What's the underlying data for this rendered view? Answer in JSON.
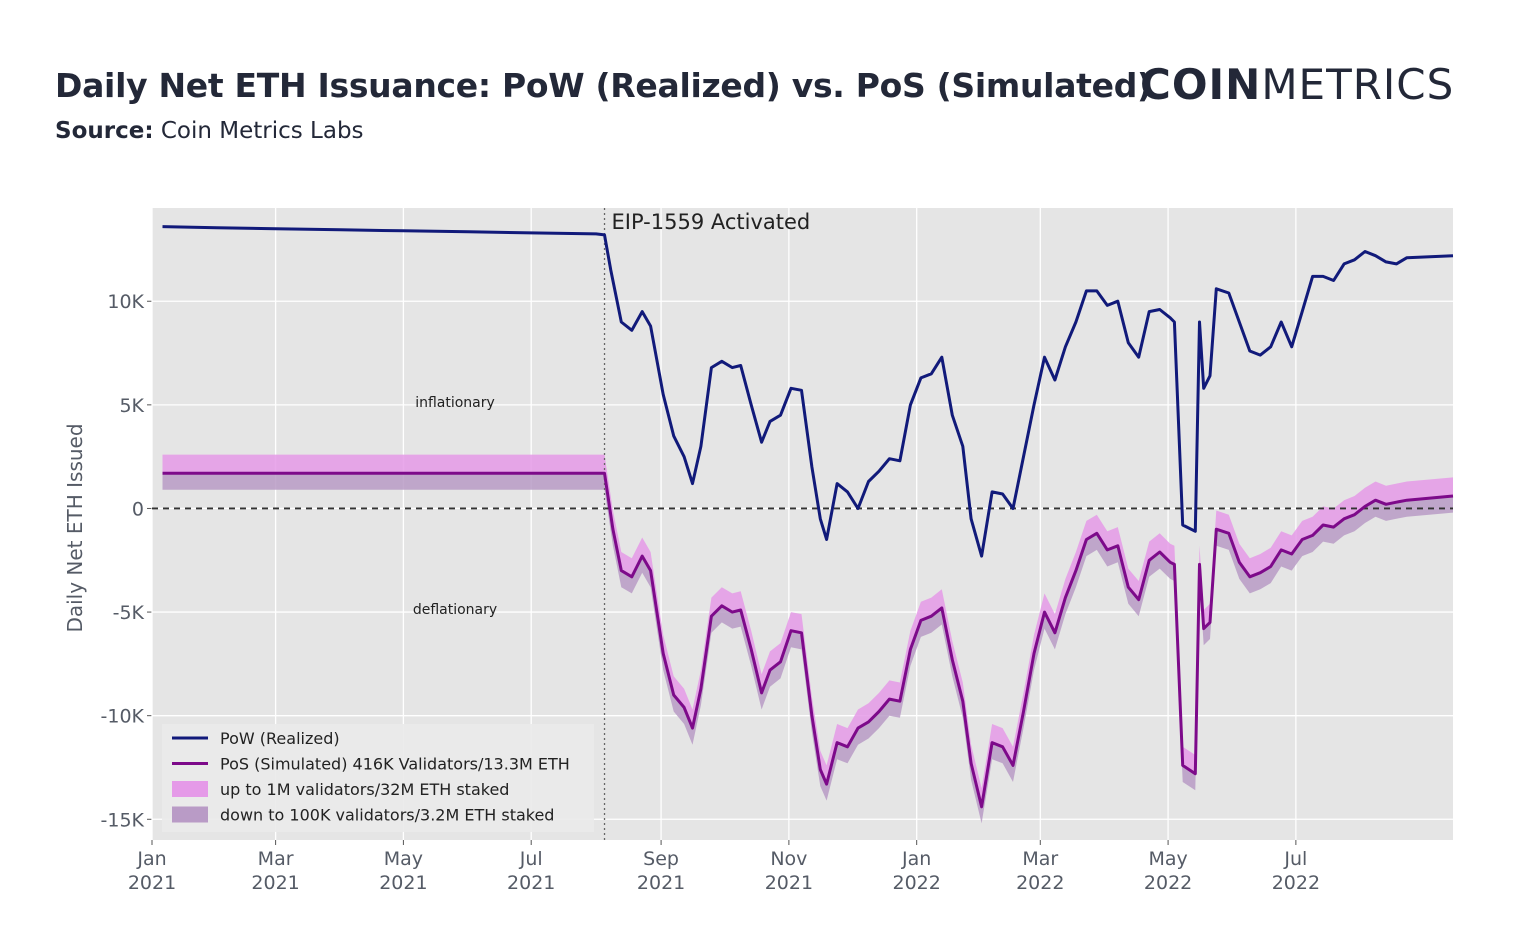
{
  "header": {
    "title": "Daily Net ETH Issuance: PoW (Realized) vs. PoS (Simulated)",
    "source_label": "Source:",
    "source_value": "Coin Metrics Labs",
    "logo_bold": "COIN",
    "logo_light": "METRICS"
  },
  "colors": {
    "pow": "#111a7a",
    "pos": "#7d0a8a",
    "band_upper": "#e59ae8",
    "band_lower": "#b99bc6",
    "plot_bg": "#e5e5e5",
    "grid": "#ffffff"
  },
  "chart_data": {
    "type": "line",
    "ylabel": "Daily Net ETH Issued",
    "ylim": [
      -16000,
      14500
    ],
    "yticks": [
      {
        "value": 10000,
        "label": "10K"
      },
      {
        "value": 5000,
        "label": "5K"
      },
      {
        "value": 0,
        "label": "0"
      },
      {
        "value": -5000,
        "label": "-5K"
      },
      {
        "value": -10000,
        "label": "-10K"
      },
      {
        "value": -15000,
        "label": "-15K"
      }
    ],
    "xrange": [
      "2021-01-01",
      "2022-09-14"
    ],
    "xticks": [
      {
        "date": "2021-01-01",
        "label1": "Jan",
        "label2": "2021"
      },
      {
        "date": "2021-03-01",
        "label1": "Mar",
        "label2": "2021"
      },
      {
        "date": "2021-05-01",
        "label1": "May",
        "label2": "2021"
      },
      {
        "date": "2021-07-01",
        "label1": "Jul",
        "label2": "2021"
      },
      {
        "date": "2021-09-01",
        "label1": "Sep",
        "label2": "2021"
      },
      {
        "date": "2021-11-01",
        "label1": "Nov",
        "label2": "2021"
      },
      {
        "date": "2022-01-01",
        "label1": "Jan",
        "label2": "2022"
      },
      {
        "date": "2022-03-01",
        "label1": "Mar",
        "label2": "2022"
      },
      {
        "date": "2022-05-01",
        "label1": "May",
        "label2": "2022"
      },
      {
        "date": "2022-07-01",
        "label1": "Jul",
        "label2": "2022"
      }
    ],
    "event": {
      "date": "2021-08-05",
      "label": "EIP-1559 Activated"
    },
    "zero_line_labels": {
      "above": "inflationary",
      "below": "deflationary"
    },
    "legend": [
      {
        "key": "pow",
        "label": "PoW (Realized)",
        "kind": "line"
      },
      {
        "key": "pos",
        "label": "PoS (Simulated) 416K Validators/13.3M ETH",
        "kind": "line"
      },
      {
        "key": "band_upper",
        "label": "up to 1M validators/32M ETH staked",
        "kind": "area"
      },
      {
        "key": "band_lower",
        "label": "down to 100K validators/3.2M ETH staked",
        "kind": "area"
      }
    ],
    "series": [
      {
        "name": "PoW (Realized)",
        "points": [
          [
            "2021-01-06",
            13600
          ],
          [
            "2021-02-01",
            13550
          ],
          [
            "2021-03-01",
            13500
          ],
          [
            "2021-04-01",
            13450
          ],
          [
            "2021-05-01",
            13400
          ],
          [
            "2021-06-01",
            13350
          ],
          [
            "2021-07-01",
            13300
          ],
          [
            "2021-08-01",
            13250
          ],
          [
            "2021-08-05",
            13200
          ],
          [
            "2021-08-08",
            11500
          ],
          [
            "2021-08-13",
            9000
          ],
          [
            "2021-08-18",
            8600
          ],
          [
            "2021-08-23",
            9500
          ],
          [
            "2021-08-27",
            8800
          ],
          [
            "2021-09-02",
            5500
          ],
          [
            "2021-09-07",
            3500
          ],
          [
            "2021-09-12",
            2500
          ],
          [
            "2021-09-16",
            1200
          ],
          [
            "2021-09-20",
            3000
          ],
          [
            "2021-09-25",
            6800
          ],
          [
            "2021-09-30",
            7100
          ],
          [
            "2021-10-05",
            6800
          ],
          [
            "2021-10-09",
            6900
          ],
          [
            "2021-10-14",
            5000
          ],
          [
            "2021-10-19",
            3200
          ],
          [
            "2021-10-23",
            4200
          ],
          [
            "2021-10-28",
            4500
          ],
          [
            "2021-11-02",
            5800
          ],
          [
            "2021-11-07",
            5700
          ],
          [
            "2021-11-12",
            2000
          ],
          [
            "2021-11-16",
            -500
          ],
          [
            "2021-11-19",
            -1500
          ],
          [
            "2021-11-24",
            1200
          ],
          [
            "2021-11-29",
            800
          ],
          [
            "2021-12-04",
            0
          ],
          [
            "2021-12-09",
            1300
          ],
          [
            "2021-12-14",
            1800
          ],
          [
            "2021-12-19",
            2400
          ],
          [
            "2021-12-24",
            2300
          ],
          [
            "2021-12-29",
            5000
          ],
          [
            "2022-01-03",
            6300
          ],
          [
            "2022-01-08",
            6500
          ],
          [
            "2022-01-13",
            7300
          ],
          [
            "2022-01-18",
            4500
          ],
          [
            "2022-01-23",
            3000
          ],
          [
            "2022-01-27",
            -500
          ],
          [
            "2022-02-01",
            -2300
          ],
          [
            "2022-02-06",
            800
          ],
          [
            "2022-02-11",
            700
          ],
          [
            "2022-02-16",
            0
          ],
          [
            "2022-02-21",
            2500
          ],
          [
            "2022-02-26",
            5000
          ],
          [
            "2022-03-03",
            7300
          ],
          [
            "2022-03-08",
            6200
          ],
          [
            "2022-03-13",
            7800
          ],
          [
            "2022-03-18",
            9000
          ],
          [
            "2022-03-23",
            10500
          ],
          [
            "2022-03-28",
            10500
          ],
          [
            "2022-04-02",
            9800
          ],
          [
            "2022-04-07",
            10000
          ],
          [
            "2022-04-12",
            8000
          ],
          [
            "2022-04-17",
            7300
          ],
          [
            "2022-04-22",
            9500
          ],
          [
            "2022-04-27",
            9600
          ],
          [
            "2022-05-02",
            9200
          ],
          [
            "2022-05-04",
            9000
          ],
          [
            "2022-05-08",
            -800
          ],
          [
            "2022-05-14",
            -1100
          ],
          [
            "2022-05-16",
            9000
          ],
          [
            "2022-05-18",
            5800
          ],
          [
            "2022-05-21",
            6400
          ],
          [
            "2022-05-24",
            10600
          ],
          [
            "2022-05-30",
            10400
          ],
          [
            "2022-06-04",
            9000
          ],
          [
            "2022-06-09",
            7600
          ],
          [
            "2022-06-14",
            7400
          ],
          [
            "2022-06-19",
            7800
          ],
          [
            "2022-06-24",
            9000
          ],
          [
            "2022-06-29",
            7800
          ],
          [
            "2022-07-04",
            9500
          ],
          [
            "2022-07-09",
            11200
          ],
          [
            "2022-07-14",
            11200
          ],
          [
            "2022-07-19",
            11000
          ],
          [
            "2022-07-24",
            11800
          ],
          [
            "2022-07-29",
            12000
          ],
          [
            "2022-08-03",
            12400
          ],
          [
            "2022-08-08",
            12200
          ],
          [
            "2022-08-13",
            11900
          ],
          [
            "2022-08-18",
            11800
          ],
          [
            "2022-08-23",
            12100
          ],
          [
            "2022-09-14",
            12200
          ]
        ]
      },
      {
        "name": "PoS (Simulated) 416K Validators/13.3M ETH",
        "band_upper_offset": 900,
        "band_lower_offset": -800,
        "points": [
          [
            "2021-01-06",
            1700
          ],
          [
            "2021-03-01",
            1700
          ],
          [
            "2021-05-01",
            1700
          ],
          [
            "2021-07-01",
            1700
          ],
          [
            "2021-08-05",
            1700
          ],
          [
            "2021-08-09",
            -1000
          ],
          [
            "2021-08-13",
            -3000
          ],
          [
            "2021-08-18",
            -3300
          ],
          [
            "2021-08-23",
            -2300
          ],
          [
            "2021-08-27",
            -3000
          ],
          [
            "2021-09-02",
            -7000
          ],
          [
            "2021-09-07",
            -9000
          ],
          [
            "2021-09-12",
            -9600
          ],
          [
            "2021-09-16",
            -10600
          ],
          [
            "2021-09-20",
            -8700
          ],
          [
            "2021-09-25",
            -5200
          ],
          [
            "2021-09-30",
            -4700
          ],
          [
            "2021-10-05",
            -5000
          ],
          [
            "2021-10-09",
            -4900
          ],
          [
            "2021-10-14",
            -6800
          ],
          [
            "2021-10-19",
            -8900
          ],
          [
            "2021-10-23",
            -7800
          ],
          [
            "2021-10-28",
            -7400
          ],
          [
            "2021-11-02",
            -5900
          ],
          [
            "2021-11-07",
            -6000
          ],
          [
            "2021-11-12",
            -10000
          ],
          [
            "2021-11-16",
            -12600
          ],
          [
            "2021-11-19",
            -13300
          ],
          [
            "2021-11-24",
            -11300
          ],
          [
            "2021-11-29",
            -11500
          ],
          [
            "2021-12-04",
            -10600
          ],
          [
            "2021-12-09",
            -10300
          ],
          [
            "2021-12-14",
            -9800
          ],
          [
            "2021-12-19",
            -9200
          ],
          [
            "2021-12-24",
            -9300
          ],
          [
            "2021-12-29",
            -6800
          ],
          [
            "2022-01-03",
            -5400
          ],
          [
            "2022-01-08",
            -5200
          ],
          [
            "2022-01-13",
            -4800
          ],
          [
            "2022-01-18",
            -7300
          ],
          [
            "2022-01-23",
            -9300
          ],
          [
            "2022-01-27",
            -12300
          ],
          [
            "2022-02-01",
            -14400
          ],
          [
            "2022-02-06",
            -11300
          ],
          [
            "2022-02-11",
            -11500
          ],
          [
            "2022-02-16",
            -12400
          ],
          [
            "2022-02-21",
            -9800
          ],
          [
            "2022-02-26",
            -7000
          ],
          [
            "2022-03-03",
            -5000
          ],
          [
            "2022-03-08",
            -6000
          ],
          [
            "2022-03-13",
            -4300
          ],
          [
            "2022-03-18",
            -3000
          ],
          [
            "2022-03-23",
            -1500
          ],
          [
            "2022-03-28",
            -1200
          ],
          [
            "2022-04-02",
            -2000
          ],
          [
            "2022-04-07",
            -1800
          ],
          [
            "2022-04-12",
            -3800
          ],
          [
            "2022-04-17",
            -4400
          ],
          [
            "2022-04-22",
            -2500
          ],
          [
            "2022-04-27",
            -2100
          ],
          [
            "2022-05-02",
            -2600
          ],
          [
            "2022-05-04",
            -2700
          ],
          [
            "2022-05-08",
            -12400
          ],
          [
            "2022-05-14",
            -12800
          ],
          [
            "2022-05-16",
            -2700
          ],
          [
            "2022-05-18",
            -5800
          ],
          [
            "2022-05-21",
            -5500
          ],
          [
            "2022-05-24",
            -1000
          ],
          [
            "2022-05-30",
            -1200
          ],
          [
            "2022-06-04",
            -2600
          ],
          [
            "2022-06-09",
            -3300
          ],
          [
            "2022-06-14",
            -3100
          ],
          [
            "2022-06-19",
            -2800
          ],
          [
            "2022-06-24",
            -2000
          ],
          [
            "2022-06-29",
            -2200
          ],
          [
            "2022-07-04",
            -1500
          ],
          [
            "2022-07-09",
            -1300
          ],
          [
            "2022-07-14",
            -800
          ],
          [
            "2022-07-19",
            -900
          ],
          [
            "2022-07-24",
            -500
          ],
          [
            "2022-07-29",
            -300
          ],
          [
            "2022-08-03",
            100
          ],
          [
            "2022-08-08",
            400
          ],
          [
            "2022-08-13",
            200
          ],
          [
            "2022-08-18",
            300
          ],
          [
            "2022-08-23",
            400
          ],
          [
            "2022-09-14",
            600
          ]
        ]
      }
    ]
  }
}
